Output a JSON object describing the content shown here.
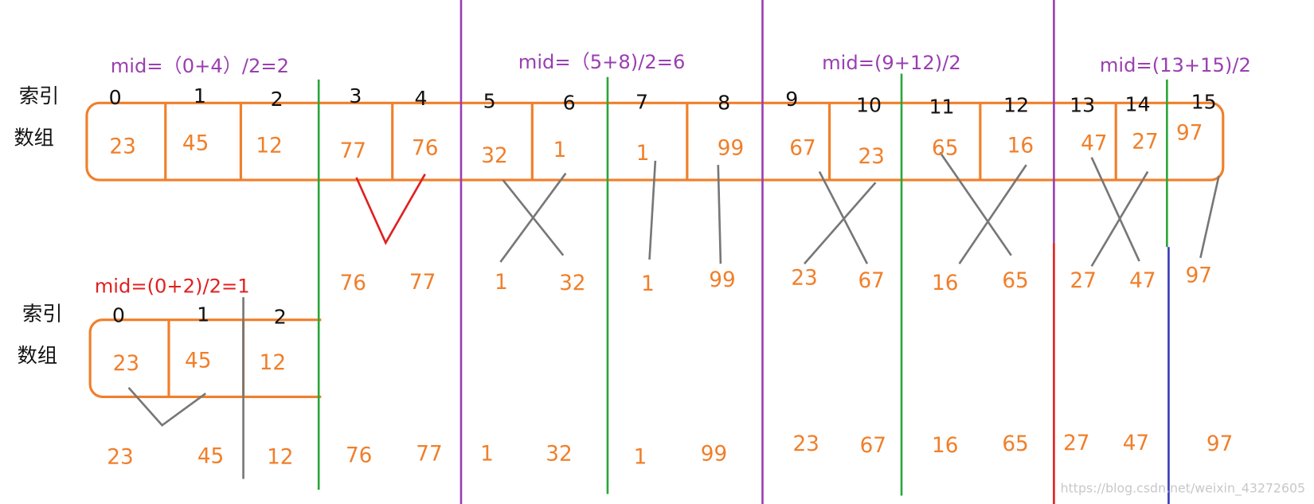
{
  "labels": {
    "index": "索引",
    "array": "数组"
  },
  "top": {
    "mids": [
      "mid=（0+4）/2=2",
      "mid=（5+8)/2=6",
      "mid=(9+12)/2",
      "mid=(13+15)/2"
    ],
    "indices": [
      "0",
      "1",
      "2",
      "3",
      "4",
      "5",
      "6",
      "7",
      "8",
      "9",
      "10",
      "11",
      "12",
      "13",
      "14",
      "15"
    ],
    "values": [
      "23",
      "45",
      "12",
      "77",
      "76",
      "32",
      "1",
      "1",
      "99",
      "67",
      "23",
      "65",
      "16",
      "47",
      "27",
      "97"
    ]
  },
  "merged": [
    "76",
    "77",
    "1",
    "32",
    "1",
    "99",
    "23",
    "67",
    "16",
    "65",
    "27",
    "47",
    "97"
  ],
  "sub": {
    "mid": "mid=(0+2)/2=1",
    "indices": [
      "0",
      "1",
      "2"
    ],
    "values": [
      "23",
      "45",
      "12"
    ]
  },
  "bottom": [
    "23",
    "45",
    "12",
    "76",
    "77",
    "1",
    "32",
    "1",
    "99",
    "23",
    "67",
    "16",
    "65",
    "27",
    "47",
    "97"
  ],
  "watermark": "https://blog.csdn.net/weixin_43272605"
}
